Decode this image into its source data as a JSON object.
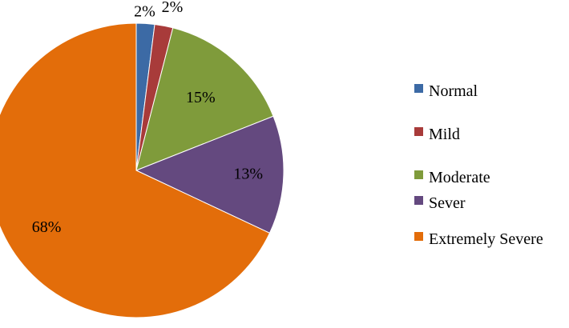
{
  "chart_data": {
    "type": "pie",
    "title": "",
    "categories": [
      "Normal",
      "Mild",
      "Moderate",
      "Sever",
      "Extremely Severe"
    ],
    "values": [
      2,
      2,
      15,
      13,
      68
    ],
    "labels": [
      "2%",
      "2%",
      "15%",
      "13%",
      "68%"
    ],
    "colors": [
      "#3c6aa5",
      "#a83b3a",
      "#7f9b3b",
      "#64497f",
      "#e36d0a"
    ],
    "legend_position": "right"
  }
}
